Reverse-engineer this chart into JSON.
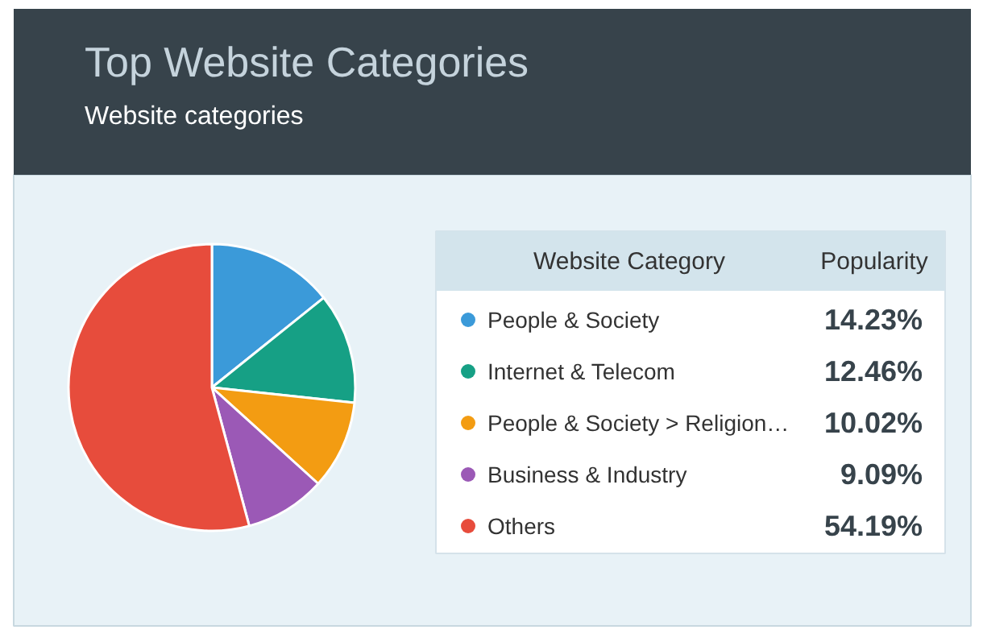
{
  "chart_data": {
    "type": "pie",
    "title": "Top Website Categories",
    "subtitle": "Website categories",
    "legend": "right",
    "legend_title": "Website Category",
    "annotations": [
      "Popularity"
    ],
    "categories": [
      "People & Society",
      "Internet & Telecom",
      "People & Society > Religion…",
      "Business & Industry",
      "Others"
    ],
    "values": [
      14.23,
      12.46,
      10.02,
      9.09,
      54.19
    ],
    "value_labels": [
      "14.23%",
      "12.46%",
      "10.02%",
      "9.09%",
      "54.19%"
    ],
    "colors": [
      "#3b9ad9",
      "#16a085",
      "#f39c12",
      "#9b59b6",
      "#e74c3c"
    ]
  }
}
